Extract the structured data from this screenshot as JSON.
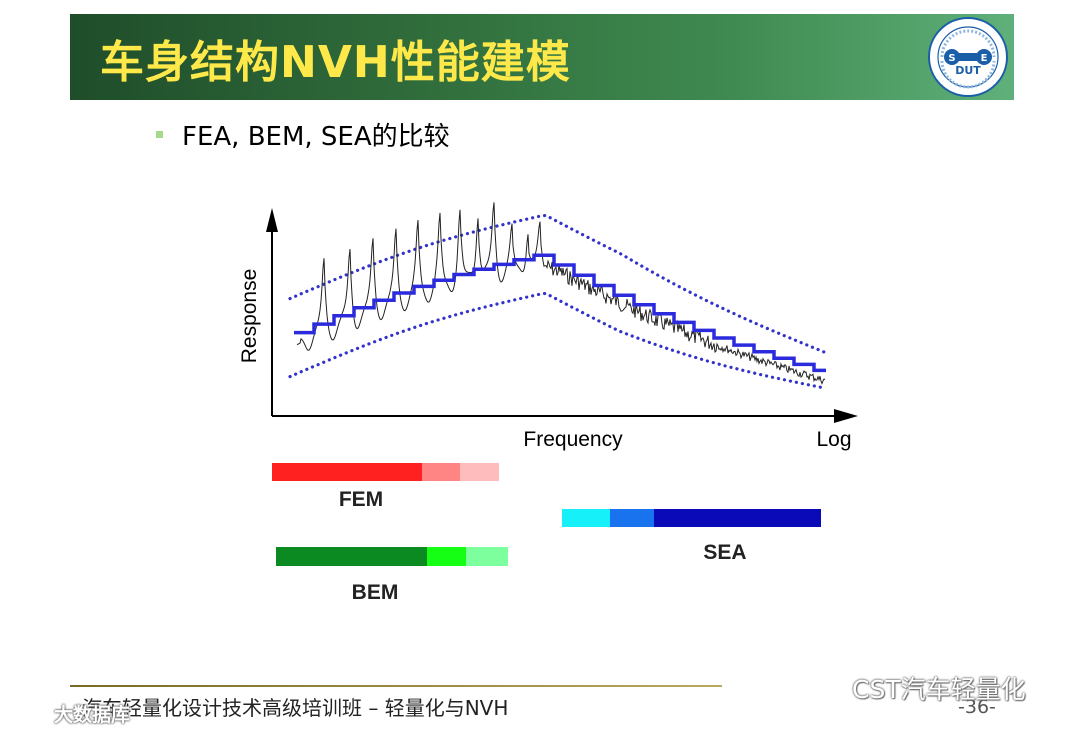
{
  "slide": {
    "title": "车身结构NVH性能建模",
    "bullet": "FEA, BEM, SEA的比较",
    "footer": "汽车轻量化设计技术高级培训班 – 轻量化与NVH",
    "page_number": "-36-"
  },
  "logo": {
    "text": "DUT",
    "left_letter": "S",
    "right_letter": "E"
  },
  "diagram": {
    "y_axis_label": "Response",
    "x_axis_label": "Frequency",
    "x_axis_scale": "Log",
    "methods": [
      {
        "name": "FEM",
        "colors": [
          "#ff2020",
          "#ff8585",
          "#ffbcbc"
        ]
      },
      {
        "name": "BEM",
        "colors": [
          "#0c8a22",
          "#14ff14",
          "#7cff9c"
        ]
      },
      {
        "name": "SEA",
        "colors": [
          "#16f0f8",
          "#1a73ee",
          "#0a0ab8"
        ]
      }
    ],
    "curve_colors": {
      "envelope": "#3333cc",
      "average": "#2b2bdd",
      "response": "#222222"
    }
  },
  "watermarks": {
    "right": "CST汽车轻量化",
    "left": "大数据库"
  }
}
